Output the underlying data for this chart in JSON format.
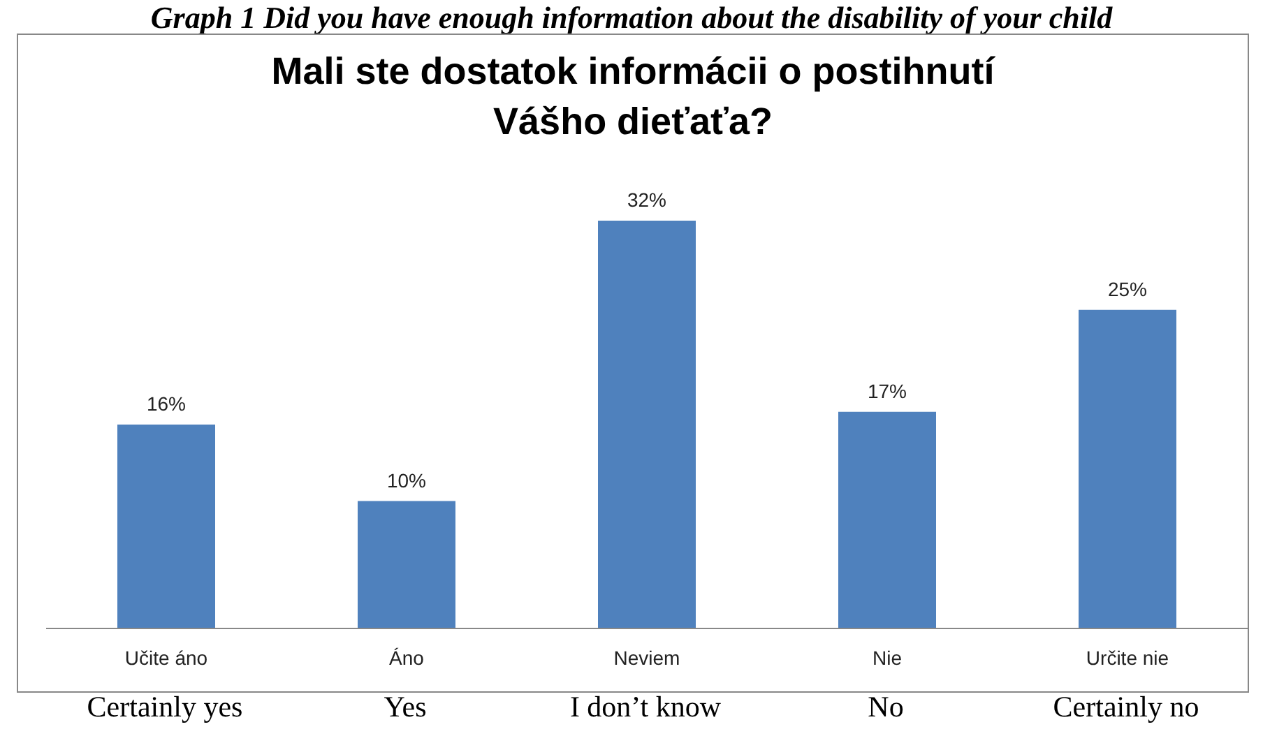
{
  "chart_data": {
    "type": "bar",
    "title": "Mali ste dostatok informácii o postihnutí Vášho dieťaťa?",
    "categories": [
      "Učite áno",
      "Áno",
      "Neviem",
      "Nie",
      "Určite nie"
    ],
    "values": [
      16,
      10,
      32,
      17,
      25
    ],
    "value_labels": [
      "16%",
      "10%",
      "32%",
      "17%",
      "25%"
    ],
    "color": "#4f81bd",
    "grid": false,
    "legend": false,
    "annotations": [
      "Graph 1 Did you have enough information about the disability of your child",
      "Certainly yes",
      "Yes",
      "I don’t know",
      "No",
      "Certainly no"
    ]
  }
}
